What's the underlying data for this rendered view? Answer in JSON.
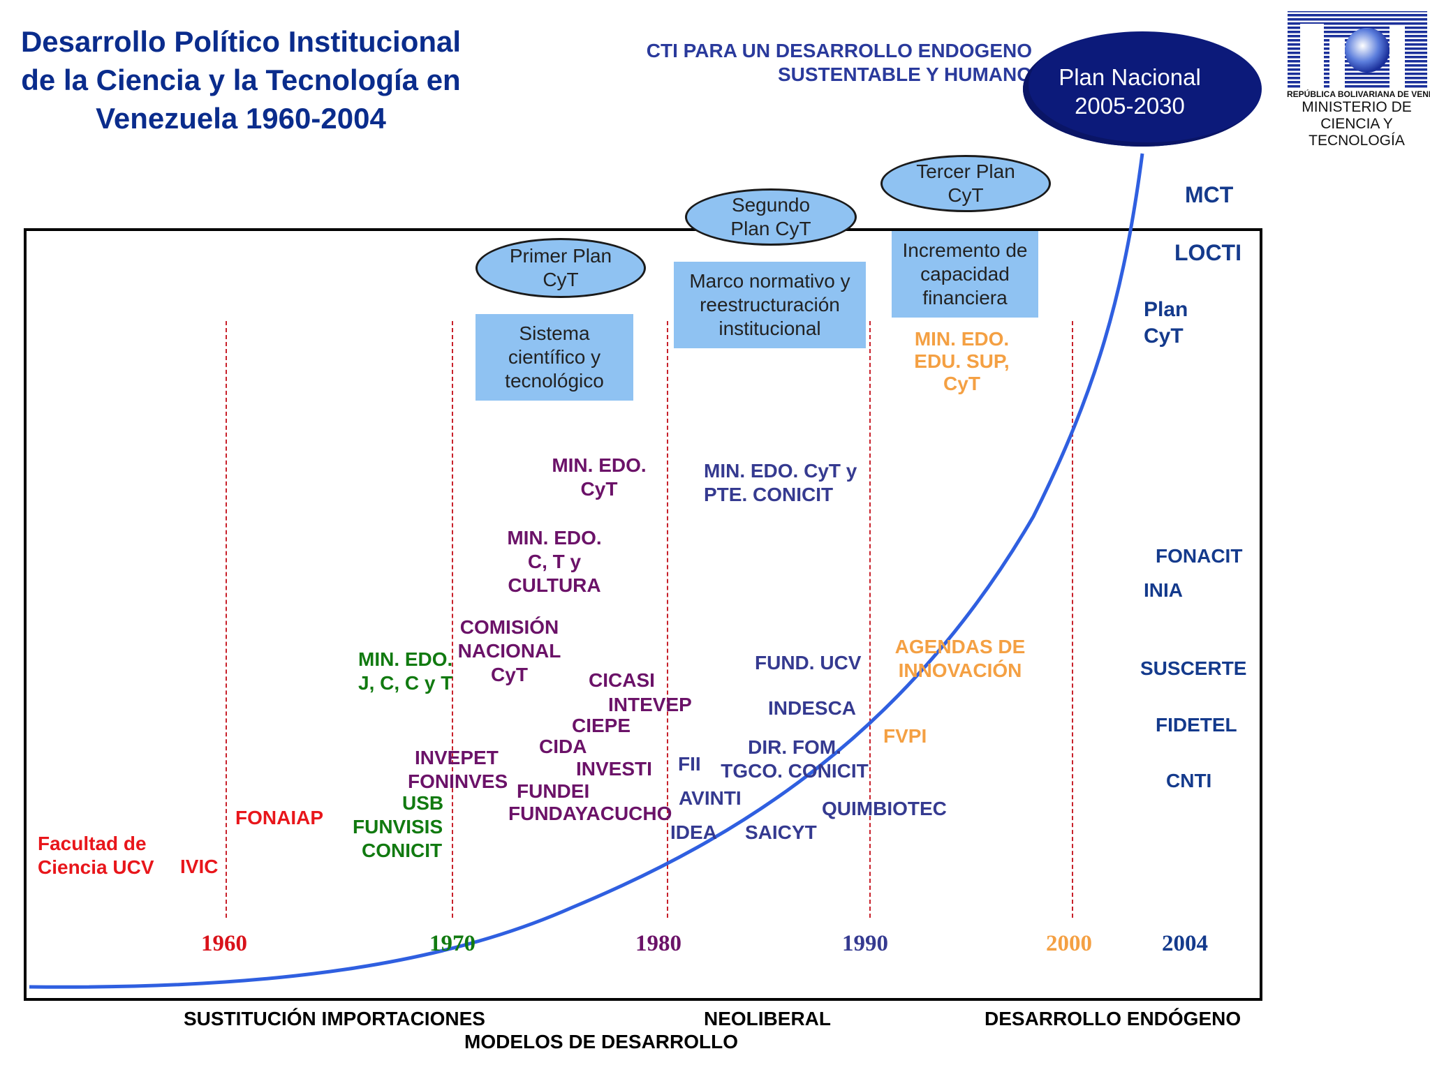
{
  "title": "Desarrollo Político Institucional de la Ciencia y la Tecnología en Venezuela 1960-2004",
  "subtitle": "CTI PARA UN DESARROLLO ENDOGENO SUSTENTABLE Y HUMANO",
  "plan_nacional": "Plan Nacional 2005-2030",
  "logo": {
    "mark": "MCT",
    "caption_small": "REPÚBLICA BOLIVARIANA DE VENEZUELA",
    "caption": "MINISTERIO DE CIENCIA Y TECNOLOGÍA"
  },
  "years": [
    "1960",
    "1970",
    "1980",
    "1990",
    "2000",
    "2004"
  ],
  "ellipses": [
    "Primer Plan CyT",
    "Segundo Plan CyT",
    "Tercer Plan CyT"
  ],
  "boxes": [
    "Sistema científico y tecnológico",
    "Marco normativo y reestructuración institucional",
    "Incremento de capacidad financiera"
  ],
  "right_labels": [
    "MCT",
    "LOCTI",
    "Plan CyT",
    "FONACIT",
    "INIA",
    "SUSCERTE",
    "FIDETEL",
    "CNTI"
  ],
  "era_1960s": [
    "Facultad de Ciencia UCV",
    "IVIC",
    "FONAIAP"
  ],
  "era_1970_green": [
    "MIN. EDO. J, C, C y T",
    "USB",
    "FUNVISIS",
    "CONICIT"
  ],
  "era_1970s": [
    "MIN. EDO. CyT",
    "MIN. EDO. C, T y CULTURA",
    "COMISIÓN NACIONAL CyT",
    "CICASI",
    "INTEVEP",
    "CIEPE",
    "CIDA",
    "INVEPET",
    "FONINVES",
    "INVESTI",
    "FUNDEI",
    "FUNDAYACUCHO"
  ],
  "era_1980s": [
    "MIN. EDO. CyT y PTE. CONICIT",
    "FUND. UCV",
    "INDESCA",
    "DIR. FOM. TGCO. CONICIT",
    "FII",
    "AVINTI",
    "IDEA",
    "SAICYT",
    "QUIMBIOTEC"
  ],
  "era_1990s": [
    "MIN. EDO. EDU. SUP, CyT",
    "AGENDAS DE INNOVACIÓN",
    "FVPI"
  ],
  "bottom": {
    "model1": "SUSTITUCIÓN IMPORTACIONES",
    "model2": "NEOLIBERAL",
    "model3": "DESARROLLO ENDÓGENO",
    "axis": "MODELOS DE DESARROLLO"
  },
  "colors": {
    "title": "#0a2c8c",
    "curve": "#2f5fe0",
    "box": "#8fc2f2",
    "plan_nacional": "#0c1a7a",
    "1960s": "#e8161b",
    "1970": "#117a10",
    "1970s": "#6b1268",
    "1980s": "#353a90",
    "1990s": "#f4a043",
    "2004": "#143a8c"
  }
}
